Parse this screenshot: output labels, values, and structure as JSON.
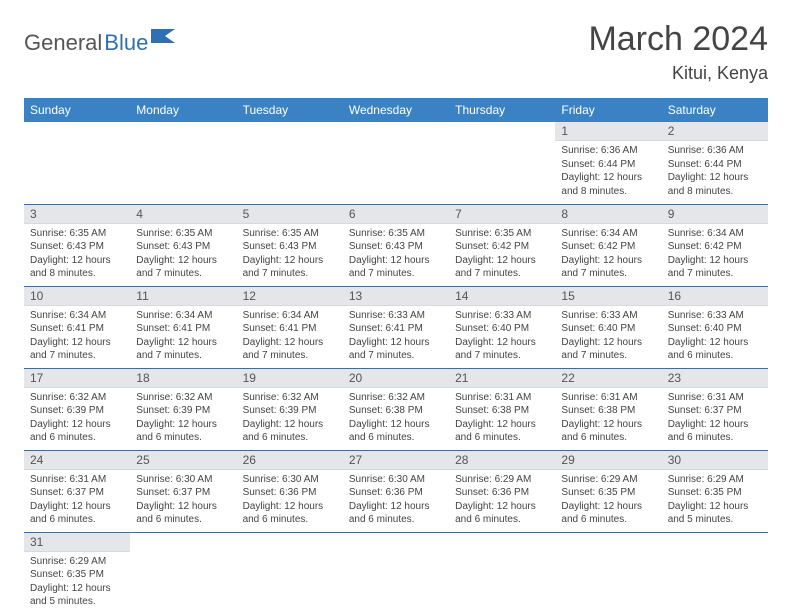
{
  "logo": {
    "word1": "General",
    "word2": "Blue"
  },
  "title": "March 2024",
  "location": "Kitui, Kenya",
  "colors": {
    "header_bg": "#3b82c4",
    "header_fg": "#ffffff",
    "daynum_bg": "#e4e6e9",
    "row_border": "#2f6fb3",
    "logo_blue": "#2f6fb3"
  },
  "weekdays": [
    "Sunday",
    "Monday",
    "Tuesday",
    "Wednesday",
    "Thursday",
    "Friday",
    "Saturday"
  ],
  "weeks": [
    [
      null,
      null,
      null,
      null,
      null,
      {
        "n": "1",
        "sr": "Sunrise: 6:36 AM",
        "ss": "Sunset: 6:44 PM",
        "d1": "Daylight: 12 hours",
        "d2": "and 8 minutes."
      },
      {
        "n": "2",
        "sr": "Sunrise: 6:36 AM",
        "ss": "Sunset: 6:44 PM",
        "d1": "Daylight: 12 hours",
        "d2": "and 8 minutes."
      }
    ],
    [
      {
        "n": "3",
        "sr": "Sunrise: 6:35 AM",
        "ss": "Sunset: 6:43 PM",
        "d1": "Daylight: 12 hours",
        "d2": "and 8 minutes."
      },
      {
        "n": "4",
        "sr": "Sunrise: 6:35 AM",
        "ss": "Sunset: 6:43 PM",
        "d1": "Daylight: 12 hours",
        "d2": "and 7 minutes."
      },
      {
        "n": "5",
        "sr": "Sunrise: 6:35 AM",
        "ss": "Sunset: 6:43 PM",
        "d1": "Daylight: 12 hours",
        "d2": "and 7 minutes."
      },
      {
        "n": "6",
        "sr": "Sunrise: 6:35 AM",
        "ss": "Sunset: 6:43 PM",
        "d1": "Daylight: 12 hours",
        "d2": "and 7 minutes."
      },
      {
        "n": "7",
        "sr": "Sunrise: 6:35 AM",
        "ss": "Sunset: 6:42 PM",
        "d1": "Daylight: 12 hours",
        "d2": "and 7 minutes."
      },
      {
        "n": "8",
        "sr": "Sunrise: 6:34 AM",
        "ss": "Sunset: 6:42 PM",
        "d1": "Daylight: 12 hours",
        "d2": "and 7 minutes."
      },
      {
        "n": "9",
        "sr": "Sunrise: 6:34 AM",
        "ss": "Sunset: 6:42 PM",
        "d1": "Daylight: 12 hours",
        "d2": "and 7 minutes."
      }
    ],
    [
      {
        "n": "10",
        "sr": "Sunrise: 6:34 AM",
        "ss": "Sunset: 6:41 PM",
        "d1": "Daylight: 12 hours",
        "d2": "and 7 minutes."
      },
      {
        "n": "11",
        "sr": "Sunrise: 6:34 AM",
        "ss": "Sunset: 6:41 PM",
        "d1": "Daylight: 12 hours",
        "d2": "and 7 minutes."
      },
      {
        "n": "12",
        "sr": "Sunrise: 6:34 AM",
        "ss": "Sunset: 6:41 PM",
        "d1": "Daylight: 12 hours",
        "d2": "and 7 minutes."
      },
      {
        "n": "13",
        "sr": "Sunrise: 6:33 AM",
        "ss": "Sunset: 6:41 PM",
        "d1": "Daylight: 12 hours",
        "d2": "and 7 minutes."
      },
      {
        "n": "14",
        "sr": "Sunrise: 6:33 AM",
        "ss": "Sunset: 6:40 PM",
        "d1": "Daylight: 12 hours",
        "d2": "and 7 minutes."
      },
      {
        "n": "15",
        "sr": "Sunrise: 6:33 AM",
        "ss": "Sunset: 6:40 PM",
        "d1": "Daylight: 12 hours",
        "d2": "and 7 minutes."
      },
      {
        "n": "16",
        "sr": "Sunrise: 6:33 AM",
        "ss": "Sunset: 6:40 PM",
        "d1": "Daylight: 12 hours",
        "d2": "and 6 minutes."
      }
    ],
    [
      {
        "n": "17",
        "sr": "Sunrise: 6:32 AM",
        "ss": "Sunset: 6:39 PM",
        "d1": "Daylight: 12 hours",
        "d2": "and 6 minutes."
      },
      {
        "n": "18",
        "sr": "Sunrise: 6:32 AM",
        "ss": "Sunset: 6:39 PM",
        "d1": "Daylight: 12 hours",
        "d2": "and 6 minutes."
      },
      {
        "n": "19",
        "sr": "Sunrise: 6:32 AM",
        "ss": "Sunset: 6:39 PM",
        "d1": "Daylight: 12 hours",
        "d2": "and 6 minutes."
      },
      {
        "n": "20",
        "sr": "Sunrise: 6:32 AM",
        "ss": "Sunset: 6:38 PM",
        "d1": "Daylight: 12 hours",
        "d2": "and 6 minutes."
      },
      {
        "n": "21",
        "sr": "Sunrise: 6:31 AM",
        "ss": "Sunset: 6:38 PM",
        "d1": "Daylight: 12 hours",
        "d2": "and 6 minutes."
      },
      {
        "n": "22",
        "sr": "Sunrise: 6:31 AM",
        "ss": "Sunset: 6:38 PM",
        "d1": "Daylight: 12 hours",
        "d2": "and 6 minutes."
      },
      {
        "n": "23",
        "sr": "Sunrise: 6:31 AM",
        "ss": "Sunset: 6:37 PM",
        "d1": "Daylight: 12 hours",
        "d2": "and 6 minutes."
      }
    ],
    [
      {
        "n": "24",
        "sr": "Sunrise: 6:31 AM",
        "ss": "Sunset: 6:37 PM",
        "d1": "Daylight: 12 hours",
        "d2": "and 6 minutes."
      },
      {
        "n": "25",
        "sr": "Sunrise: 6:30 AM",
        "ss": "Sunset: 6:37 PM",
        "d1": "Daylight: 12 hours",
        "d2": "and 6 minutes."
      },
      {
        "n": "26",
        "sr": "Sunrise: 6:30 AM",
        "ss": "Sunset: 6:36 PM",
        "d1": "Daylight: 12 hours",
        "d2": "and 6 minutes."
      },
      {
        "n": "27",
        "sr": "Sunrise: 6:30 AM",
        "ss": "Sunset: 6:36 PM",
        "d1": "Daylight: 12 hours",
        "d2": "and 6 minutes."
      },
      {
        "n": "28",
        "sr": "Sunrise: 6:29 AM",
        "ss": "Sunset: 6:36 PM",
        "d1": "Daylight: 12 hours",
        "d2": "and 6 minutes."
      },
      {
        "n": "29",
        "sr": "Sunrise: 6:29 AM",
        "ss": "Sunset: 6:35 PM",
        "d1": "Daylight: 12 hours",
        "d2": "and 6 minutes."
      },
      {
        "n": "30",
        "sr": "Sunrise: 6:29 AM",
        "ss": "Sunset: 6:35 PM",
        "d1": "Daylight: 12 hours",
        "d2": "and 5 minutes."
      }
    ],
    [
      {
        "n": "31",
        "sr": "Sunrise: 6:29 AM",
        "ss": "Sunset: 6:35 PM",
        "d1": "Daylight: 12 hours",
        "d2": "and 5 minutes."
      },
      null,
      null,
      null,
      null,
      null,
      null
    ]
  ]
}
